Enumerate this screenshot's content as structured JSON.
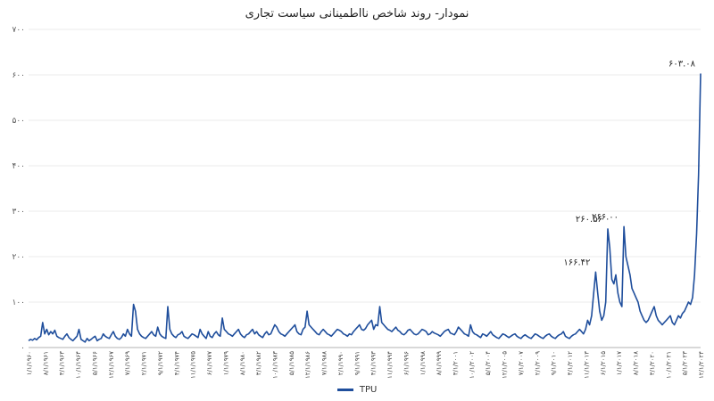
{
  "chart_data": {
    "type": "line",
    "title": "نمودار- روند شاخص نااطمینانی سیاست تجاری",
    "xlabel": "",
    "ylabel": "",
    "ylim": [
      0,
      700
    ],
    "yticks": [
      "۰",
      "۱۰۰",
      "۲۰۰",
      "۳۰۰",
      "۴۰۰",
      "۵۰۰",
      "۶۰۰",
      "۷۰۰"
    ],
    "xticks": [
      "۱/۱/۱۹۶۰",
      "۸/۱/۱۹۶۱",
      "۳/۱/۱۹۶۳",
      "۱۰/۱/۱۹۶۴",
      "۵/۱/۱۹۶۶",
      "۱۲/۱/۱۹۶۷",
      "۷/۱/۱۹۶۹",
      "۲/۱/۱۹۷۱",
      "۹/۱/۱۹۷۲",
      "۴/۱/۱۹۷۴",
      "۱۱/۱/۱۹۷۵",
      "۶/۱/۱۹۷۷",
      "۱/۱/۱۹۷۹",
      "۸/۱/۱۹۸۰",
      "۳/۱/۱۹۸۲",
      "۱۰/۱/۱۹۸۳",
      "۵/۱/۱۹۸۵",
      "۱۲/۱/۱۹۸۶",
      "۷/۱/۱۹۸۸",
      "۲/۱/۱۹۹۰",
      "۹/۱/۱۹۹۱",
      "۴/۱/۱۹۹۳",
      "۱۱/۱/۱۹۹۴",
      "۶/۱/۱۹۹۶",
      "۱/۱/۱۹۹۸",
      "۸/۱/۱۹۹۹",
      "۳/۱/۲۰۰۱",
      "۱۰/۱/۲۰۰۲",
      "۵/۱/۲۰۰۴",
      "۱۲/۱/۲۰۰۵",
      "۷/۱/۲۰۰۷",
      "۲/۱/۲۰۰۹",
      "۹/۱/۲۰۱۰",
      "۴/۱/۲۰۱۲",
      "۱۱/۱/۲۰۱۳",
      "۶/۱/۲۰۱۵",
      "۱/۱/۲۰۱۷",
      "۸/۱/۲۰۱۸",
      "۳/۱/۲۰۲۰",
      "۱۰/۱/۲۰۲۱",
      "۵/۱/۲۰۲۳",
      "۱۲/۱/۲۰۲۴"
    ],
    "series": [
      {
        "name": "TPU",
        "color": "#1f4e9c",
        "values": [
          15,
          18,
          16,
          20,
          17,
          22,
          25,
          55,
          30,
          40,
          28,
          35,
          30,
          38,
          25,
          22,
          20,
          18,
          25,
          30,
          22,
          18,
          15,
          20,
          25,
          40,
          18,
          15,
          12,
          20,
          15,
          18,
          22,
          25,
          15,
          18,
          20,
          30,
          25,
          22,
          20,
          28,
          35,
          25,
          20,
          18,
          22,
          30,
          25,
          40,
          30,
          25,
          95,
          80,
          40,
          30,
          25,
          22,
          20,
          25,
          30,
          35,
          28,
          25,
          45,
          30,
          25,
          22,
          20,
          90,
          40,
          30,
          25,
          22,
          28,
          30,
          35,
          25,
          22,
          20,
          25,
          30,
          28,
          25,
          22,
          40,
          30,
          25,
          20,
          35,
          25,
          22,
          30,
          35,
          28,
          25,
          65,
          40,
          35,
          30,
          28,
          25,
          30,
          35,
          40,
          30,
          25,
          22,
          28,
          30,
          35,
          40,
          30,
          35,
          28,
          25,
          22,
          30,
          35,
          28,
          30,
          40,
          50,
          45,
          35,
          30,
          28,
          25,
          30,
          35,
          40,
          45,
          50,
          35,
          30,
          28,
          40,
          45,
          80,
          50,
          45,
          40,
          35,
          30,
          28,
          35,
          40,
          35,
          30,
          28,
          25,
          30,
          35,
          40,
          38,
          35,
          30,
          28,
          25,
          30,
          28,
          35,
          40,
          45,
          50,
          40,
          38,
          42,
          50,
          55,
          60,
          40,
          50,
          48,
          90,
          55,
          50,
          45,
          40,
          38,
          35,
          40,
          45,
          38,
          35,
          30,
          28,
          32,
          38,
          40,
          35,
          30,
          28,
          30,
          35,
          40,
          38,
          35,
          28,
          30,
          35,
          32,
          30,
          28,
          25,
          30,
          35,
          38,
          40,
          32,
          30,
          28,
          35,
          45,
          40,
          35,
          30,
          28,
          25,
          50,
          35,
          30,
          28,
          25,
          22,
          30,
          28,
          25,
          30,
          35,
          28,
          25,
          22,
          20,
          25,
          30,
          28,
          25,
          22,
          25,
          28,
          30,
          25,
          22,
          20,
          25,
          28,
          25,
          22,
          20,
          25,
          30,
          28,
          25,
          22,
          20,
          25,
          28,
          30,
          25,
          22,
          20,
          25,
          28,
          30,
          35,
          25,
          22,
          20,
          25,
          28,
          30,
          35,
          40,
          35,
          30,
          40,
          60,
          50,
          70,
          120,
          166,
          120,
          80,
          60,
          70,
          100,
          261,
          220,
          150,
          140,
          160,
          120,
          100,
          90,
          266,
          200,
          180,
          160,
          130,
          120,
          110,
          100,
          80,
          70,
          60,
          55,
          60,
          70,
          80,
          90,
          70,
          60,
          55,
          50,
          55,
          60,
          65,
          70,
          55,
          50,
          60,
          70,
          65,
          75,
          80,
          90,
          100,
          95,
          110,
          160,
          250,
          380,
          603
        ]
      }
    ],
    "annotations": [
      {
        "label": "۱۶۶.۴۲",
        "value": 166.42
      },
      {
        "label": "۲۶۰.۵۶",
        "value": 260.56
      },
      {
        "label": "۲۶۶.۰۰",
        "value": 266.0
      },
      {
        "label": "۶۰۳.۰۸",
        "value": 603.08
      }
    ],
    "legend": {
      "position": "bottom",
      "entries": [
        "TPU"
      ]
    },
    "grid": {
      "horizontal": true,
      "vertical": false
    }
  },
  "legend_label": "TPU"
}
